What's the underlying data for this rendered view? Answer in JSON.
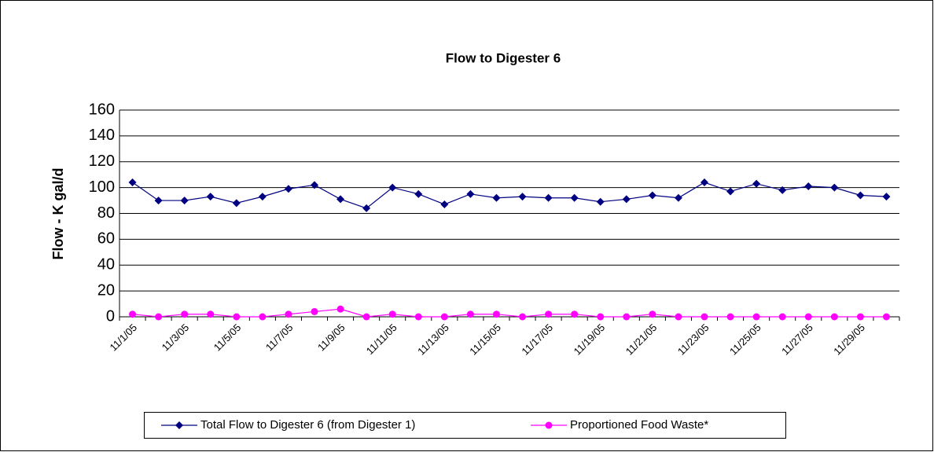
{
  "chart_data": {
    "type": "line",
    "title": "Flow to Digester 6",
    "y_label": "Flow - K gal/d",
    "categories": [
      "11/1/05",
      null,
      "11/3/05",
      null,
      "11/5/05",
      null,
      "11/7/05",
      null,
      "11/9/05",
      null,
      "11/11/05",
      null,
      "11/13/05",
      null,
      "11/15/05",
      null,
      "11/17/05",
      null,
      "11/19/05",
      null,
      "11/21/05",
      null,
      "11/23/05",
      null,
      "11/25/05",
      null,
      "11/27/05",
      null,
      "11/29/05",
      null
    ],
    "series": [
      {
        "name": "Total Flow to Digester 6 (from Digester 1)",
        "color": "#000080",
        "marker": "diamond",
        "values": [
          104,
          90,
          90,
          93,
          88,
          93,
          99,
          102,
          91,
          84,
          100,
          95,
          87,
          95,
          92,
          93,
          92,
          92,
          89,
          91,
          94,
          92,
          104,
          97,
          103,
          98,
          101,
          100,
          94,
          93
        ]
      },
      {
        "name": "Proportioned Food Waste*",
        "color": "#ff00ff",
        "marker": "circle",
        "values": [
          2,
          0,
          2,
          2,
          0,
          0,
          2,
          4,
          6,
          0,
          2,
          0,
          0,
          2,
          2,
          0,
          2,
          2,
          0,
          0,
          2,
          0,
          0,
          0,
          0,
          0,
          0,
          0,
          0,
          0
        ]
      }
    ],
    "ylim": [
      0,
      160
    ],
    "yticks": [
      0,
      20,
      40,
      60,
      80,
      100,
      120,
      140,
      160
    ],
    "grid": true,
    "legend": "bottom"
  }
}
